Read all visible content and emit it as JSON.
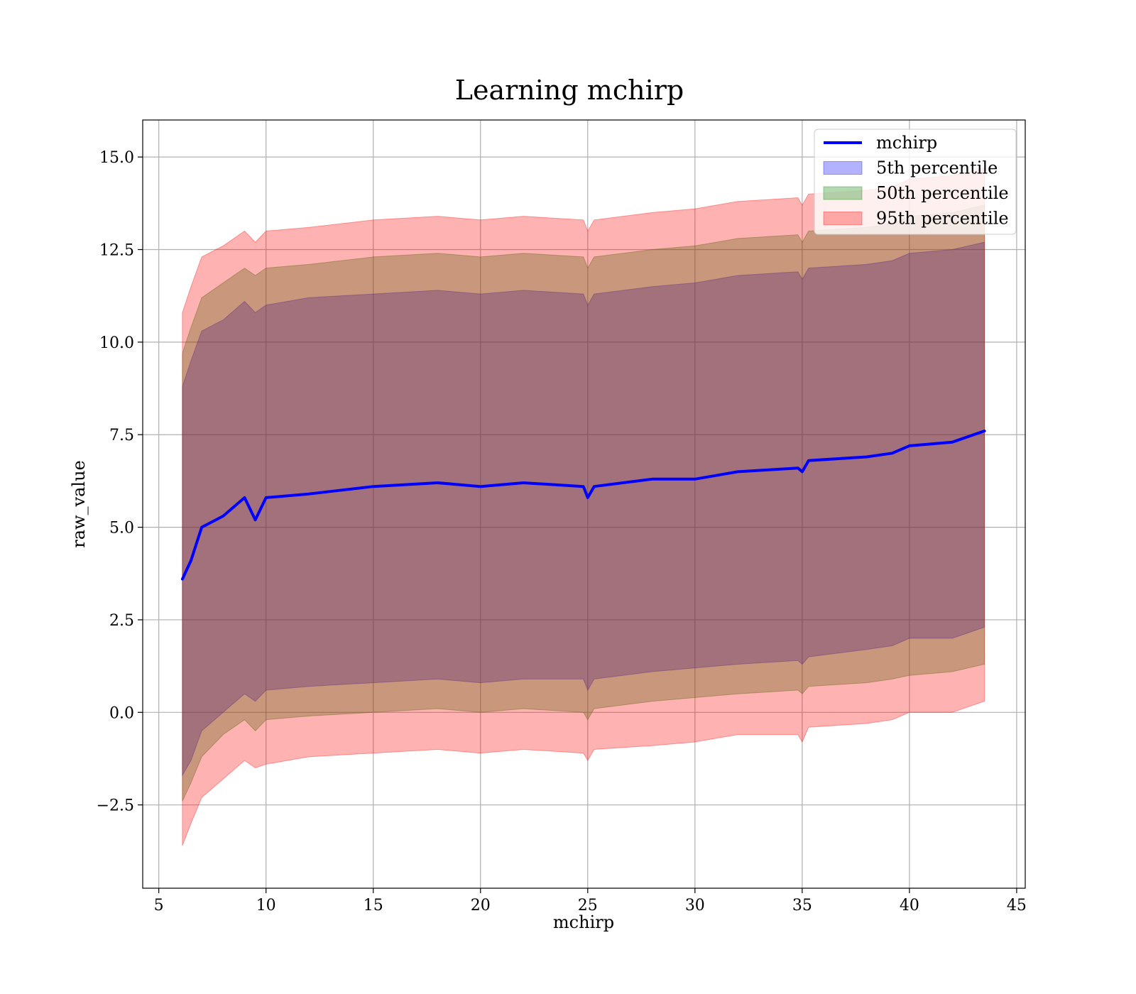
{
  "chart_data": {
    "type": "area",
    "title": "Learning mchirp",
    "xlabel": "mchirp",
    "ylabel": "raw_value",
    "xlim": [
      4.25,
      45.4
    ],
    "ylim": [
      -4.75,
      16.0
    ],
    "xticks": [
      5,
      10,
      15,
      20,
      25,
      30,
      35,
      40,
      45
    ],
    "xtick_labels": [
      "5",
      "10",
      "15",
      "20",
      "25",
      "30",
      "35",
      "40",
      "45"
    ],
    "yticks": [
      -2.5,
      0.0,
      2.5,
      5.0,
      7.5,
      10.0,
      12.5,
      15.0
    ],
    "ytick_labels": [
      "−2.5",
      "0.0",
      "2.5",
      "5.0",
      "7.5",
      "10.0",
      "12.5",
      "15.0"
    ],
    "grid": true,
    "legend_position": "top-right",
    "x": [
      6.1,
      6.5,
      7.0,
      8.0,
      9.0,
      9.5,
      10.0,
      12.0,
      15.0,
      18.0,
      20.0,
      22.0,
      24.8,
      25.0,
      25.3,
      28.0,
      30.0,
      32.0,
      34.8,
      35.0,
      35.3,
      38.0,
      39.2,
      40.0,
      42.0,
      43.5
    ],
    "series": [
      {
        "name": "mchirp",
        "role": "line",
        "color": "#0000ff",
        "values": [
          3.6,
          4.1,
          5.0,
          5.3,
          5.8,
          5.2,
          5.8,
          5.9,
          6.1,
          6.2,
          6.1,
          6.2,
          6.1,
          5.8,
          6.1,
          6.3,
          6.3,
          6.5,
          6.6,
          6.5,
          6.8,
          6.9,
          7.0,
          7.2,
          7.3,
          7.6
        ]
      },
      {
        "name": "5th percentile",
        "role": "band",
        "color": "#0000ff",
        "lower": [
          -1.7,
          -1.3,
          -0.5,
          0.0,
          0.5,
          0.3,
          0.6,
          0.7,
          0.8,
          0.9,
          0.8,
          0.9,
          0.9,
          0.6,
          0.9,
          1.1,
          1.2,
          1.3,
          1.4,
          1.3,
          1.5,
          1.7,
          1.8,
          2.0,
          2.0,
          2.3
        ],
        "upper": [
          8.8,
          9.5,
          10.3,
          10.6,
          11.1,
          10.8,
          11.0,
          11.2,
          11.3,
          11.4,
          11.3,
          11.4,
          11.3,
          11.0,
          11.3,
          11.5,
          11.6,
          11.8,
          11.9,
          11.7,
          12.0,
          12.1,
          12.2,
          12.4,
          12.5,
          12.7
        ]
      },
      {
        "name": "50th percentile",
        "role": "band",
        "color": "#008000",
        "lower": [
          -2.4,
          -1.9,
          -1.2,
          -0.6,
          -0.2,
          -0.5,
          -0.2,
          -0.1,
          0.0,
          0.1,
          0.0,
          0.1,
          0.0,
          -0.2,
          0.1,
          0.3,
          0.4,
          0.5,
          0.6,
          0.5,
          0.7,
          0.8,
          0.9,
          1.0,
          1.1,
          1.3
        ],
        "upper": [
          9.7,
          10.4,
          11.2,
          11.6,
          12.0,
          11.8,
          12.0,
          12.1,
          12.3,
          12.4,
          12.3,
          12.4,
          12.3,
          12.0,
          12.3,
          12.5,
          12.6,
          12.8,
          12.9,
          12.7,
          13.0,
          13.1,
          13.2,
          13.4,
          13.5,
          13.7
        ]
      },
      {
        "name": "95th percentile",
        "role": "band",
        "color": "#ff0000",
        "lower": [
          -3.6,
          -3.0,
          -2.3,
          -1.8,
          -1.3,
          -1.5,
          -1.4,
          -1.2,
          -1.1,
          -1.0,
          -1.1,
          -1.0,
          -1.1,
          -1.3,
          -1.0,
          -0.9,
          -0.8,
          -0.6,
          -0.6,
          -0.8,
          -0.4,
          -0.3,
          -0.2,
          0.0,
          0.0,
          0.3
        ],
        "upper": [
          10.8,
          11.5,
          12.3,
          12.6,
          13.0,
          12.7,
          13.0,
          13.1,
          13.3,
          13.4,
          13.3,
          13.4,
          13.3,
          13.0,
          13.3,
          13.5,
          13.6,
          13.8,
          13.9,
          13.7,
          14.0,
          14.1,
          14.2,
          14.4,
          14.5,
          14.7
        ]
      }
    ],
    "legend": [
      {
        "label": "mchirp",
        "kind": "line",
        "color": "#0000ff"
      },
      {
        "label": "5th percentile",
        "kind": "patch",
        "color": "#0000ff"
      },
      {
        "label": "50th percentile",
        "kind": "patch",
        "color": "#008000"
      },
      {
        "label": "95th percentile",
        "kind": "patch",
        "color": "#ff0000"
      }
    ]
  }
}
